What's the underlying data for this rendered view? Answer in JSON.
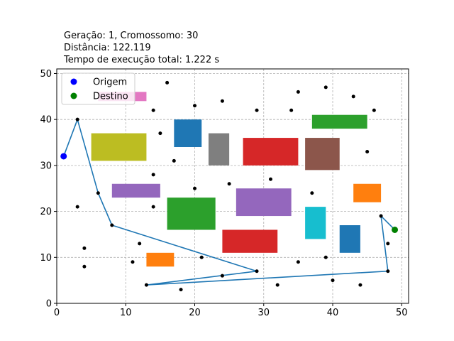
{
  "chart_data": {
    "type": "scatter",
    "title_lines": [
      "Geração: 1, Cromossomo: 30",
      "Distância: 122.119",
      "Tempo de execução total: 1.222 s"
    ],
    "xlim": [
      0,
      51
    ],
    "ylim": [
      0,
      51
    ],
    "xticks": [
      0,
      10,
      20,
      30,
      40,
      50
    ],
    "yticks": [
      0,
      10,
      20,
      30,
      40,
      50
    ],
    "grid": true,
    "legend": {
      "placement": "top-left",
      "entries": [
        {
          "label": "Origem",
          "color": "#0000ff"
        },
        {
          "label": "Destino",
          "color": "#008000"
        }
      ]
    },
    "obstacles": [
      {
        "x": [
          6,
          13
        ],
        "y": [
          44,
          46
        ],
        "color": "#e377c2"
      },
      {
        "x": [
          5,
          13
        ],
        "y": [
          31,
          37
        ],
        "color": "#bcbd22"
      },
      {
        "x": [
          17,
          21
        ],
        "y": [
          34,
          40
        ],
        "color": "#1f77b4"
      },
      {
        "x": [
          22,
          25
        ],
        "y": [
          30,
          37
        ],
        "color": "#7f7f7f"
      },
      {
        "x": [
          27,
          35
        ],
        "y": [
          30,
          36
        ],
        "color": "#d62728"
      },
      {
        "x": [
          36,
          41
        ],
        "y": [
          29,
          36
        ],
        "color": "#8c564b"
      },
      {
        "x": [
          37,
          45
        ],
        "y": [
          38,
          41
        ],
        "color": "#2ca02c"
      },
      {
        "x": [
          8,
          15
        ],
        "y": [
          23,
          26
        ],
        "color": "#9467bd"
      },
      {
        "x": [
          16,
          23
        ],
        "y": [
          16,
          23
        ],
        "color": "#2ca02c"
      },
      {
        "x": [
          26,
          34
        ],
        "y": [
          19,
          25
        ],
        "color": "#9467bd"
      },
      {
        "x": [
          36,
          39
        ],
        "y": [
          14,
          21
        ],
        "color": "#17becf"
      },
      {
        "x": [
          43,
          47
        ],
        "y": [
          22,
          26
        ],
        "color": "#ff7f0e"
      },
      {
        "x": [
          24,
          32
        ],
        "y": [
          11,
          16
        ],
        "color": "#d62728"
      },
      {
        "x": [
          41,
          44
        ],
        "y": [
          11,
          17
        ],
        "color": "#1f77b4"
      },
      {
        "x": [
          13,
          17
        ],
        "y": [
          8,
          11
        ],
        "color": "#ff7f0e"
      }
    ],
    "points": [
      [
        16,
        48
      ],
      [
        35,
        46
      ],
      [
        39,
        47
      ],
      [
        43,
        45
      ],
      [
        24,
        44
      ],
      [
        14,
        42
      ],
      [
        20,
        43
      ],
      [
        29,
        42
      ],
      [
        34,
        42
      ],
      [
        46,
        42
      ],
      [
        15,
        37
      ],
      [
        45,
        33
      ],
      [
        17,
        31
      ],
      [
        14,
        28
      ],
      [
        31,
        27
      ],
      [
        6,
        24
      ],
      [
        20,
        25
      ],
      [
        25,
        26
      ],
      [
        37,
        24
      ],
      [
        3,
        21
      ],
      [
        14,
        21
      ],
      [
        47,
        19
      ],
      [
        8,
        17
      ],
      [
        48,
        13
      ],
      [
        12,
        13
      ],
      [
        4,
        12
      ],
      [
        21,
        10
      ],
      [
        39,
        10
      ],
      [
        11,
        9
      ],
      [
        35,
        9
      ],
      [
        4,
        8
      ],
      [
        29,
        7
      ],
      [
        48,
        7
      ],
      [
        24,
        6
      ],
      [
        40,
        5
      ],
      [
        13,
        4
      ],
      [
        32,
        4
      ],
      [
        44,
        4
      ],
      [
        18,
        3
      ],
      [
        3,
        40
      ]
    ],
    "route": {
      "color": "#1f77b4",
      "x": [
        1,
        3,
        6,
        8,
        29,
        13,
        48,
        47,
        49
      ],
      "y": [
        32,
        40,
        24,
        17,
        7,
        4,
        7,
        19,
        16
      ]
    },
    "origin": {
      "x": 1,
      "y": 32,
      "color": "#0000ff"
    },
    "destination": {
      "x": 49,
      "y": 16,
      "color": "#008000"
    }
  }
}
